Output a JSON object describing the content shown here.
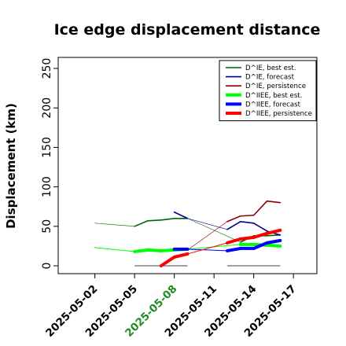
{
  "chart_data": {
    "type": "line",
    "title": "Ice edge displacement distance",
    "xlabel": "",
    "ylabel": "Displacement (km)",
    "ylim": [
      0,
      260
    ],
    "yticks": [
      "0",
      "50",
      "100",
      "150",
      "200",
      "250"
    ],
    "xlim": [
      "2025-04-30",
      "2025-05-18"
    ],
    "xticks": [
      "2025-05-02",
      "2025-05-05",
      "2025-05-08",
      "2025-05-11",
      "2025-05-14",
      "2025-05-17"
    ],
    "highlighted_xtick": "2025-05-08",
    "highlight_color": "#228b22",
    "legend_position": "top-right",
    "series": [
      {
        "name": "D^IE, best est.",
        "color": "#006400",
        "width": "thin",
        "points": [
          [
            "2025-05-02",
            54
          ],
          [
            "2025-05-05",
            50
          ],
          [
            "2025-05-06",
            57
          ],
          [
            "2025-05-07",
            58
          ],
          [
            "2025-05-08",
            60
          ],
          [
            "2025-05-09",
            60
          ],
          [
            "2025-05-13",
            30
          ],
          [
            "2025-05-14",
            38
          ],
          [
            "2025-05-15",
            38
          ],
          [
            "2025-05-16",
            39
          ]
        ]
      },
      {
        "name": "D^IE, forecast",
        "color": "#00008b",
        "width": "thin",
        "points": [
          [
            "2025-05-08",
            68
          ],
          [
            "2025-05-09",
            60
          ],
          [
            "2025-05-12",
            46
          ],
          [
            "2025-05-13",
            56
          ],
          [
            "2025-05-14",
            54
          ],
          [
            "2025-05-15",
            44
          ],
          [
            "2025-05-16",
            39
          ]
        ]
      },
      {
        "name": "D^IE, persistence",
        "color": "#8b0000",
        "width": "thin",
        "points": [
          [
            "2025-05-09",
            20
          ],
          [
            "2025-05-12",
            56
          ],
          [
            "2025-05-13",
            63
          ],
          [
            "2025-05-14",
            64
          ],
          [
            "2025-05-15",
            82
          ],
          [
            "2025-05-16",
            80
          ]
        ]
      },
      {
        "name": "D^IIEE, best est.",
        "color": "#00ff00",
        "width": "thick",
        "points": [
          [
            "2025-05-02",
            23
          ],
          [
            "2025-05-05",
            18
          ],
          [
            "2025-05-06",
            20
          ],
          [
            "2025-05-07",
            19
          ],
          [
            "2025-05-08",
            20
          ],
          [
            "2025-05-09",
            21
          ],
          [
            "2025-05-13",
            27
          ],
          [
            "2025-05-14",
            27
          ],
          [
            "2025-05-15",
            26
          ],
          [
            "2025-05-16",
            25
          ]
        ]
      },
      {
        "name": "D^IIEE, forecast",
        "color": "#0000ff",
        "width": "thick",
        "points": [
          [
            "2025-05-08",
            21
          ],
          [
            "2025-05-09",
            21
          ],
          [
            "2025-05-12",
            19
          ],
          [
            "2025-05-13",
            22
          ],
          [
            "2025-05-14",
            22
          ],
          [
            "2025-05-15",
            29
          ],
          [
            "2025-05-16",
            32
          ]
        ]
      },
      {
        "name": "D^IIEE, persistence",
        "color": "#ff0000",
        "width": "thick",
        "points": [
          [
            "2025-05-07",
            0
          ],
          [
            "2025-05-08",
            11
          ],
          [
            "2025-05-09",
            15
          ],
          [
            "2025-05-12",
            29
          ],
          [
            "2025-05-13",
            34
          ],
          [
            "2025-05-14",
            36
          ],
          [
            "2025-05-15",
            41
          ],
          [
            "2025-05-16",
            45
          ]
        ]
      }
    ],
    "baseline_segments": [
      {
        "from": "2025-05-05",
        "to": "2025-05-09",
        "y": 0,
        "color": "#808080"
      },
      {
        "from": "2025-05-12",
        "to": "2025-05-16",
        "y": 0,
        "color": "#808080"
      }
    ]
  }
}
